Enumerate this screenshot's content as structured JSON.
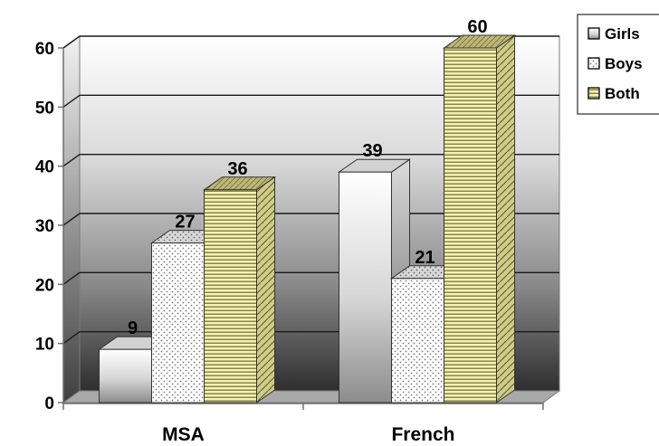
{
  "chart_data": {
    "type": "bar",
    "categories": [
      "MSA",
      "French"
    ],
    "series": [
      {
        "name": "Girls",
        "values": [
          9,
          39
        ],
        "pattern": "gradient"
      },
      {
        "name": "Boys",
        "values": [
          27,
          21
        ],
        "pattern": "dots"
      },
      {
        "name": "Both",
        "values": [
          36,
          60
        ],
        "pattern": "horizontal-lines"
      }
    ],
    "ylim": [
      0,
      60
    ],
    "yticks": [
      0,
      10,
      20,
      30,
      40,
      50,
      60
    ],
    "grid": true,
    "legend_position": "top-right",
    "style": "3d-clustered-column",
    "colors": {
      "both_fill": "#f4f2b4",
      "both_lines": "#6f6a2e",
      "boys_dots": "#777777",
      "wall_top": "#ffffff",
      "wall_bottom": "#2e2e2e"
    }
  }
}
